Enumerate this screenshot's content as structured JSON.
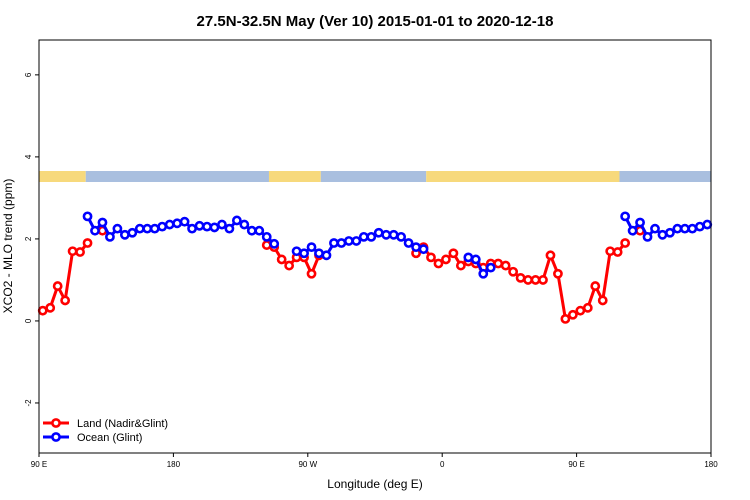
{
  "chart_data": {
    "type": "line",
    "title": "27.5N-32.5N May (Ver 10)   2015-01-01 to 2020-12-18",
    "x_label": "Longitude (deg E)",
    "y_label": "XCO2 - MLO trend (ppm)",
    "x": [
      92.5,
      97.5,
      102.5,
      107.5,
      112.5,
      117.5,
      122.5,
      127.5,
      132.5,
      137.5,
      142.5,
      147.5,
      152.5,
      157.5,
      162.5,
      167.5,
      172.5,
      177.5,
      182.5,
      187.5,
      192.5,
      197.5,
      202.5,
      207.5,
      212.5,
      217.5,
      222.5,
      227.5,
      232.5,
      237.5,
      242.5,
      247.5,
      252.5,
      257.5,
      262.5,
      267.5,
      272.5,
      277.5,
      282.5,
      287.5,
      292.5,
      297.5,
      302.5,
      307.5,
      312.5,
      317.5,
      322.5,
      327.5,
      332.5,
      337.5,
      342.5,
      347.5,
      352.5,
      357.5,
      362.5,
      367.5,
      372.5,
      377.5,
      382.5,
      387.5,
      392.5,
      397.5,
      402.5,
      407.5,
      412.5,
      417.5,
      422.5,
      427.5,
      432.5,
      437.5,
      442.5,
      447.5,
      452.5,
      457.5,
      462.5,
      467.5,
      472.5,
      477.5,
      482.5,
      487.5,
      492.5,
      497.5,
      502.5,
      507.5,
      512.5,
      517.5,
      522.5,
      527.5,
      532.5,
      537.5
    ],
    "series": [
      {
        "name": "Land (Nadir&Glint)",
        "color": "#ff0000",
        "values": [
          0.25,
          0.32,
          0.85,
          0.5,
          1.7,
          1.68,
          1.9,
          null,
          2.2,
          null,
          null,
          null,
          null,
          null,
          null,
          null,
          null,
          null,
          null,
          null,
          null,
          null,
          null,
          null,
          null,
          null,
          null,
          null,
          null,
          null,
          1.85,
          1.8,
          1.5,
          1.35,
          1.55,
          1.55,
          1.15,
          1.6,
          null,
          null,
          null,
          null,
          null,
          null,
          null,
          null,
          null,
          null,
          null,
          null,
          1.65,
          1.8,
          1.55,
          1.4,
          1.5,
          1.65,
          1.35,
          1.45,
          1.4,
          1.3,
          1.4,
          1.4,
          1.35,
          1.2,
          1.05,
          1.0,
          1.0,
          1.0,
          1.6,
          1.15,
          0.05,
          0.15,
          0.25,
          0.32,
          0.85,
          0.5,
          1.7,
          1.68,
          1.9,
          null,
          2.2,
          null,
          null,
          null,
          null,
          null,
          null,
          null,
          null,
          null
        ]
      },
      {
        "name": "Ocean (Glint)",
        "color": "#0000ff",
        "values": [
          null,
          null,
          null,
          null,
          null,
          null,
          2.55,
          2.2,
          2.4,
          2.05,
          2.25,
          2.1,
          2.15,
          2.25,
          2.25,
          2.25,
          2.3,
          2.35,
          2.38,
          2.42,
          2.25,
          2.32,
          2.3,
          2.28,
          2.35,
          2.25,
          2.45,
          2.35,
          2.2,
          2.2,
          2.05,
          1.88,
          null,
          null,
          1.7,
          1.65,
          1.8,
          1.65,
          1.6,
          1.9,
          1.9,
          1.95,
          1.95,
          2.05,
          2.05,
          2.15,
          2.1,
          2.1,
          2.05,
          1.9,
          1.8,
          1.75,
          null,
          null,
          null,
          null,
          null,
          1.55,
          1.5,
          1.15,
          1.3,
          null,
          null,
          null,
          null,
          null,
          null,
          null,
          null,
          null,
          null,
          null,
          null,
          null,
          null,
          null,
          null,
          null,
          2.55,
          2.2,
          2.4,
          2.05,
          2.25,
          2.1,
          2.15,
          2.25,
          2.25,
          2.25,
          2.3,
          2.35
        ]
      }
    ],
    "surface_bands": [
      {
        "range": [
          90,
          121.3
        ],
        "color": "#f7d97c"
      },
      {
        "range": [
          121.3,
          244
        ],
        "color": "#a9bfdf"
      },
      {
        "range": [
          244,
          278.7
        ],
        "color": "#f7d97c"
      },
      {
        "range": [
          278.7,
          349.3
        ],
        "color": "#a9bfdf"
      },
      {
        "range": [
          349.3,
          478.7
        ],
        "color": "#f7d97c"
      },
      {
        "range": [
          478.7,
          540
        ],
        "color": "#a9bfdf"
      }
    ],
    "xlim": [
      90,
      540
    ],
    "ylim": [
      -3.22,
      6.85
    ],
    "xticks": [
      {
        "value": 90,
        "label": "90 E"
      },
      180,
      {
        "value": 270,
        "label": "90 W"
      },
      {
        "value": 360,
        "label": "0"
      },
      {
        "value": 450,
        "label": "90 E"
      },
      {
        "value": 540,
        "label": "180"
      }
    ],
    "yticks": [
      -2,
      0,
      2,
      4,
      6
    ],
    "legend": "bottom-left"
  }
}
